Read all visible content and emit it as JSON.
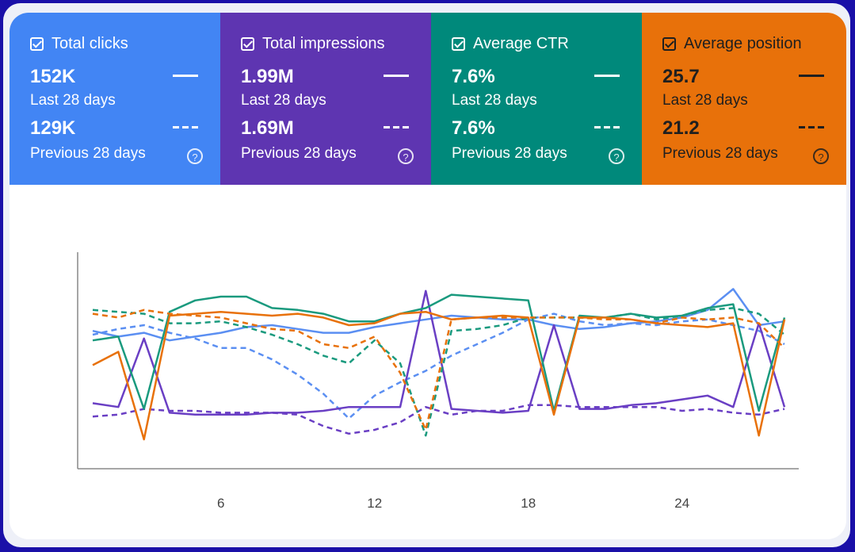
{
  "metrics": [
    {
      "key": "clicks",
      "title": "Total clicks",
      "current": "152K",
      "current_label": "Last 28 days",
      "previous": "129K",
      "previous_label": "Previous 28 days",
      "color": "#4285f4",
      "line": "#5b8ff2"
    },
    {
      "key": "impressions",
      "title": "Total impressions",
      "current": "1.99M",
      "current_label": "Last 28 days",
      "previous": "1.69M",
      "previous_label": "Previous 28 days",
      "color": "#5e35b1",
      "line": "#6a3fc4"
    },
    {
      "key": "ctr",
      "title": "Average CTR",
      "current": "7.6%",
      "current_label": "Last 28 days",
      "previous": "7.6%",
      "previous_label": "Previous 28 days",
      "color": "#00897b",
      "line": "#1a9a7e"
    },
    {
      "key": "position",
      "title": "Average position",
      "current": "25.7",
      "current_label": "Last 28 days",
      "previous": "21.2",
      "previous_label": "Previous 28 days",
      "color": "#e8710a",
      "line": "#e8710a"
    }
  ],
  "help_glyph": "?",
  "chart_data": {
    "type": "line",
    "x": [
      1,
      2,
      3,
      4,
      5,
      6,
      7,
      8,
      9,
      10,
      11,
      12,
      13,
      14,
      15,
      16,
      17,
      18,
      19,
      20,
      21,
      22,
      23,
      24,
      25,
      26,
      27,
      28
    ],
    "xticks": [
      "6",
      "12",
      "18",
      "24"
    ],
    "xtick_values": [
      6,
      12,
      18,
      24
    ],
    "ylim": [
      0,
      100
    ],
    "grid": false,
    "series": [
      {
        "name": "Total clicks",
        "style": "solid",
        "color": "#5b8ff2",
        "values": [
          67,
          64,
          66,
          62,
          64,
          66,
          69,
          70,
          68,
          66,
          66,
          69,
          71,
          73,
          75,
          74,
          73,
          73,
          70,
          68,
          69,
          71,
          72,
          74,
          78,
          89,
          70,
          72
        ]
      },
      {
        "name": "Total clicks",
        "style": "dashed",
        "color": "#5b8ff2",
        "values": [
          65,
          68,
          70,
          66,
          63,
          58,
          58,
          52,
          44,
          34,
          21,
          33,
          40,
          46,
          54,
          60,
          66,
          73,
          76,
          72,
          70,
          71,
          70,
          72,
          73,
          70,
          67,
          60
        ]
      },
      {
        "name": "Total impressions",
        "style": "solid",
        "color": "#6a3fc4",
        "values": [
          29,
          27,
          63,
          24,
          23,
          23,
          23,
          24,
          24,
          25,
          27,
          27,
          27,
          88,
          26,
          25,
          24,
          25,
          70,
          26,
          26,
          28,
          29,
          31,
          33,
          27,
          71,
          27
        ]
      },
      {
        "name": "Total impressions",
        "style": "dashed",
        "color": "#6a3fc4",
        "values": [
          22,
          23,
          26,
          25,
          25,
          24,
          24,
          24,
          23,
          17,
          13,
          15,
          19,
          27,
          23,
          25,
          25,
          28,
          28,
          27,
          27,
          27,
          27,
          25,
          26,
          24,
          23,
          26
        ]
      },
      {
        "name": "Average CTR",
        "style": "solid",
        "color": "#1a9a7e",
        "values": [
          62,
          64,
          26,
          77,
          83,
          85,
          85,
          79,
          78,
          76,
          72,
          72,
          76,
          79,
          86,
          85,
          84,
          83,
          25,
          75,
          74,
          76,
          74,
          75,
          79,
          81,
          25,
          74
        ]
      },
      {
        "name": "Average CTR",
        "style": "dashed",
        "color": "#1a9a7e",
        "values": [
          78,
          77,
          76,
          71,
          71,
          72,
          69,
          65,
          60,
          54,
          50,
          62,
          50,
          12,
          67,
          68,
          70,
          74,
          74,
          74,
          74,
          76,
          73,
          75,
          78,
          79,
          76,
          65
        ]
      },
      {
        "name": "Average position",
        "style": "solid",
        "color": "#e8710a",
        "values": [
          49,
          56,
          10,
          75,
          76,
          77,
          76,
          75,
          76,
          74,
          70,
          71,
          76,
          77,
          73,
          74,
          75,
          74,
          23,
          74,
          74,
          73,
          71,
          70,
          69,
          71,
          12,
          73
        ]
      },
      {
        "name": "Average position",
        "style": "dashed",
        "color": "#e8710a",
        "values": [
          76,
          74,
          78,
          76,
          75,
          74,
          71,
          68,
          67,
          60,
          58,
          64,
          45,
          15,
          73,
          74,
          74,
          74,
          74,
          74,
          73,
          73,
          71,
          74,
          73,
          74,
          71,
          58
        ]
      }
    ]
  }
}
